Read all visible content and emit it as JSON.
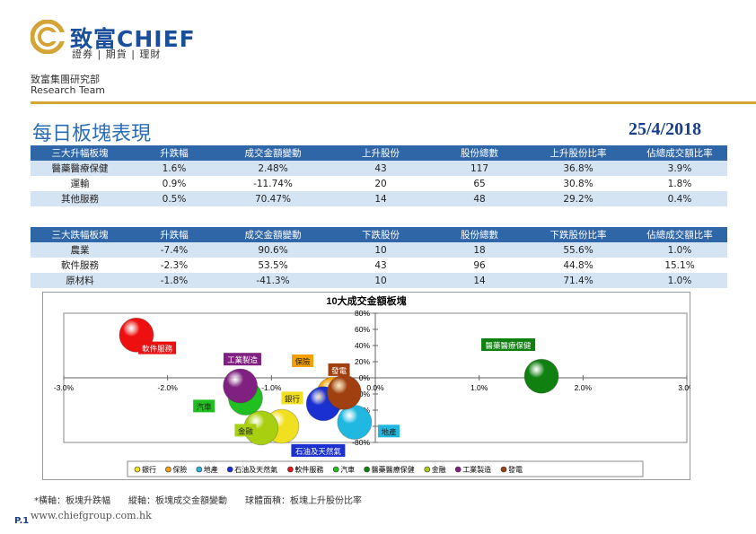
{
  "header": {
    "brand": "致富CHIEF",
    "tagline": "證券 | 期貨 | 理財",
    "dept_cn": "致富集團研究部",
    "dept_en": "Research Team"
  },
  "page": {
    "title": "每日板塊表現",
    "date": "25/4/2018"
  },
  "top_table": {
    "headers": [
      "三大升幅板塊",
      "升跌幅",
      "成交金額變動",
      "上升股份",
      "股份總數",
      "上升股份比率",
      "佔總成交額比率"
    ],
    "rows": [
      [
        "醫藥醫療保健",
        "1.6%",
        "2.48%",
        "43",
        "117",
        "36.8%",
        "3.9%"
      ],
      [
        "運輸",
        "0.9%",
        "-11.74%",
        "20",
        "65",
        "30.8%",
        "1.8%"
      ],
      [
        "其他服務",
        "0.5%",
        "70.47%",
        "14",
        "48",
        "29.2%",
        "0.4%"
      ]
    ]
  },
  "bottom_table": {
    "headers": [
      "三大跌幅板塊",
      "升跌幅",
      "成交金額變動",
      "下跌股份",
      "股份總數",
      "下跌股份比率",
      "佔總成交額比率"
    ],
    "rows": [
      [
        "農業",
        "-7.4%",
        "90.6%",
        "10",
        "18",
        "55.6%",
        "1.0%"
      ],
      [
        "軟件服務",
        "-2.3%",
        "53.5%",
        "43",
        "96",
        "44.8%",
        "15.1%"
      ],
      [
        "原材料",
        "-1.8%",
        "-41.3%",
        "10",
        "14",
        "71.4%",
        "1.0%"
      ]
    ]
  },
  "chart_data": {
    "type": "scatter",
    "title": "10大成交金額板塊",
    "xlim": [
      -3.0,
      3.0
    ],
    "ylim": [
      -80,
      80
    ],
    "x_ticks": [
      "-3.0%",
      "-2.0%",
      "-1.0%",
      "0.0%",
      "1.0%",
      "2.0%",
      "3.0%"
    ],
    "y_ticks": [
      "80%",
      "60%",
      "40%",
      "20%",
      "0%",
      "-20%",
      "-40%",
      "-60%",
      "-80%"
    ],
    "legend_position": "bottom",
    "series": [
      {
        "name": "銀行",
        "x": -0.9,
        "y": -60,
        "size": 1.0,
        "color": "#f0e020"
      },
      {
        "name": "保險",
        "x": -0.4,
        "y": -20,
        "size": 1.0,
        "color": "#f5a000"
      },
      {
        "name": "地產",
        "x": -0.2,
        "y": -55,
        "size": 1.0,
        "color": "#20b8e0"
      },
      {
        "name": "石油及天然氣",
        "x": -0.5,
        "y": -32,
        "size": 1.0,
        "color": "#1a30d0"
      },
      {
        "name": "軟件服務",
        "x": -2.3,
        "y": 53,
        "size": 1.0,
        "color": "#ee1010"
      },
      {
        "name": "汽車",
        "x": -1.25,
        "y": -25,
        "size": 1.0,
        "color": "#20c020"
      },
      {
        "name": "醫藥醫療保健",
        "x": 1.6,
        "y": 2,
        "size": 1.0,
        "color": "#108010"
      },
      {
        "name": "金融",
        "x": -1.1,
        "y": -62,
        "size": 1.0,
        "color": "#a8d010"
      },
      {
        "name": "工業製造",
        "x": -1.3,
        "y": -10,
        "size": 1.0,
        "color": "#802080"
      },
      {
        "name": "發電",
        "x": -0.3,
        "y": -18,
        "size": 1.0,
        "color": "#a04010"
      }
    ],
    "labels": [
      {
        "text": "軟件服務",
        "bg": "#e81010",
        "color": "#ffffff",
        "x": -2.1,
        "y": 36
      },
      {
        "text": "工業製造",
        "bg": "#802080",
        "color": "#ffffff",
        "x": -1.28,
        "y": 22
      },
      {
        "text": "保險",
        "bg": "#f5a000",
        "color": "#222222",
        "x": -0.7,
        "y": 20
      },
      {
        "text": "發電",
        "bg": "#a04010",
        "color": "#ffffff",
        "x": -0.35,
        "y": 9
      },
      {
        "text": "銀行",
        "bg": "#f0e020",
        "color": "#222222",
        "x": -0.8,
        "y": -26
      },
      {
        "text": "汽車",
        "bg": "#20c020",
        "color": "#222222",
        "x": -1.65,
        "y": -36
      },
      {
        "text": "金融",
        "bg": "#a8d010",
        "color": "#222222",
        "x": -1.25,
        "y": -66
      },
      {
        "text": "石油及天然氣",
        "bg": "#1a30d0",
        "color": "#ffffff",
        "x": -0.55,
        "y": -91
      },
      {
        "text": "地產",
        "bg": "#20b8e0",
        "color": "#222222",
        "x": 0.13,
        "y": -67
      },
      {
        "text": "醫藥醫療保健",
        "bg": "#108010",
        "color": "#ffffff",
        "x": 1.28,
        "y": 40
      }
    ]
  },
  "chart_note": "*橫軸：板塊升跌幅　　縱軸：板塊成交金額變動　　球體面積：板塊上升股份比率",
  "footer": {
    "url": "www.chiefgroup.com.hk",
    "page": "P.1"
  }
}
